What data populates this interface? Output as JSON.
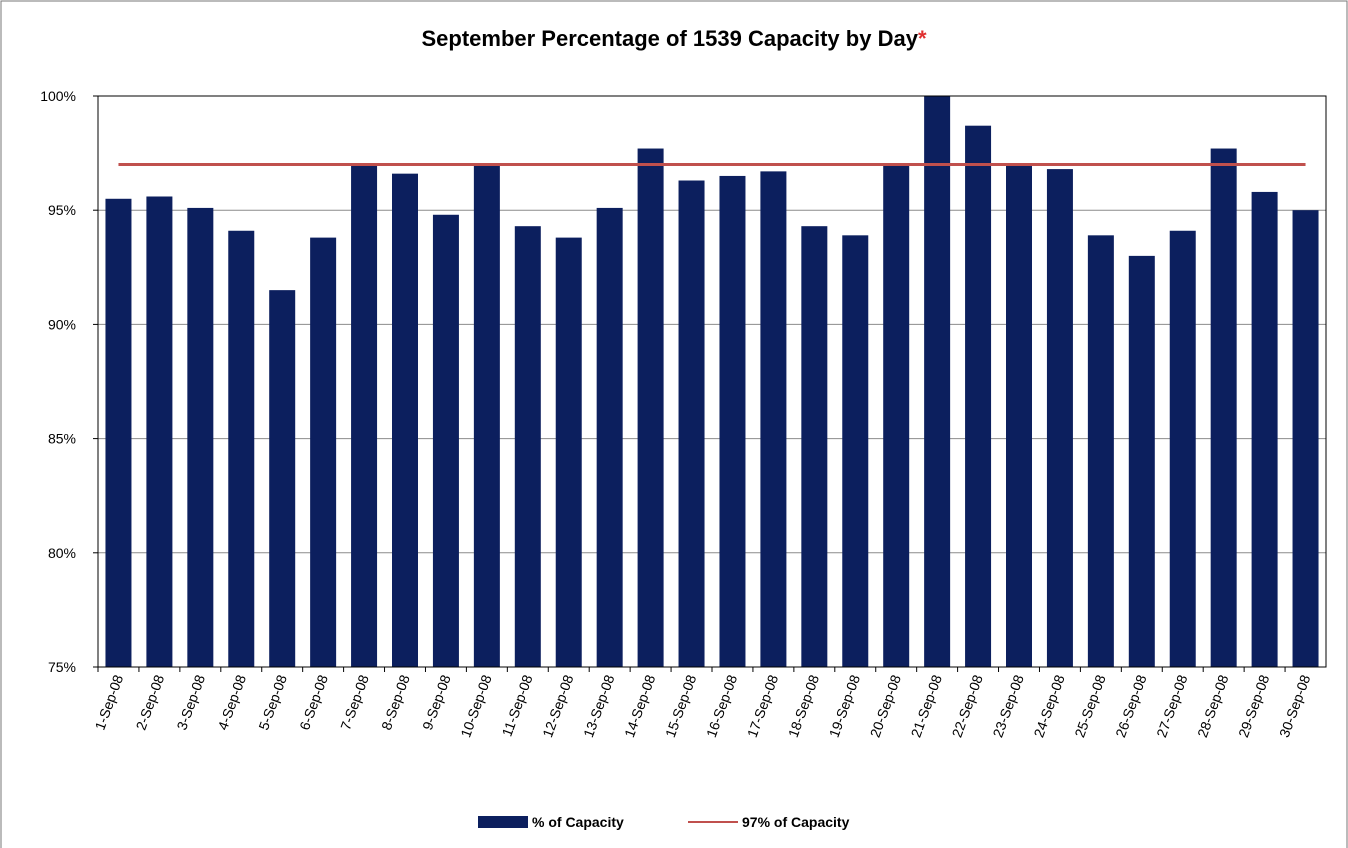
{
  "chart_data": {
    "type": "bar",
    "title": "September Percentage of 1539 Capacity by Day",
    "title_note": "*",
    "categories": [
      "1-Sep-08",
      "2-Sep-08",
      "3-Sep-08",
      "4-Sep-08",
      "5-Sep-08",
      "6-Sep-08",
      "7-Sep-08",
      "8-Sep-08",
      "9-Sep-08",
      "10-Sep-08",
      "11-Sep-08",
      "12-Sep-08",
      "13-Sep-08",
      "14-Sep-08",
      "15-Sep-08",
      "16-Sep-08",
      "17-Sep-08",
      "18-Sep-08",
      "19-Sep-08",
      "20-Sep-08",
      "21-Sep-08",
      "22-Sep-08",
      "23-Sep-08",
      "24-Sep-08",
      "25-Sep-08",
      "26-Sep-08",
      "27-Sep-08",
      "28-Sep-08",
      "29-Sep-08",
      "30-Sep-08"
    ],
    "series": [
      {
        "name": "% of Capacity",
        "type": "bar",
        "color": "#0c1f5e",
        "values": [
          95.5,
          95.6,
          95.1,
          94.1,
          91.5,
          93.8,
          97.0,
          96.6,
          94.8,
          97.0,
          94.3,
          93.8,
          95.1,
          97.7,
          96.3,
          96.5,
          96.7,
          94.3,
          93.9,
          97.0,
          100,
          98.7,
          97.0,
          96.8,
          93.9,
          93.0,
          94.1,
          97.7,
          95.8,
          95.0
        ]
      },
      {
        "name": "97% of Capacity",
        "type": "line",
        "color": "#c0504d",
        "values": [
          97,
          97,
          97,
          97,
          97,
          97,
          97,
          97,
          97,
          97,
          97,
          97,
          97,
          97,
          97,
          97,
          97,
          97,
          97,
          97,
          97,
          97,
          97,
          97,
          97,
          97,
          97,
          97,
          97,
          97
        ]
      }
    ],
    "ylim": [
      75,
      100
    ],
    "yticks": [
      {
        "value": 75,
        "label": "75%"
      },
      {
        "value": 80,
        "label": "80%"
      },
      {
        "value": 85,
        "label": "85%"
      },
      {
        "value": 90,
        "label": "90%"
      },
      {
        "value": 95,
        "label": "95%"
      },
      {
        "value": 100,
        "label": "100%"
      }
    ],
    "grid": true,
    "legend": "bottom"
  }
}
